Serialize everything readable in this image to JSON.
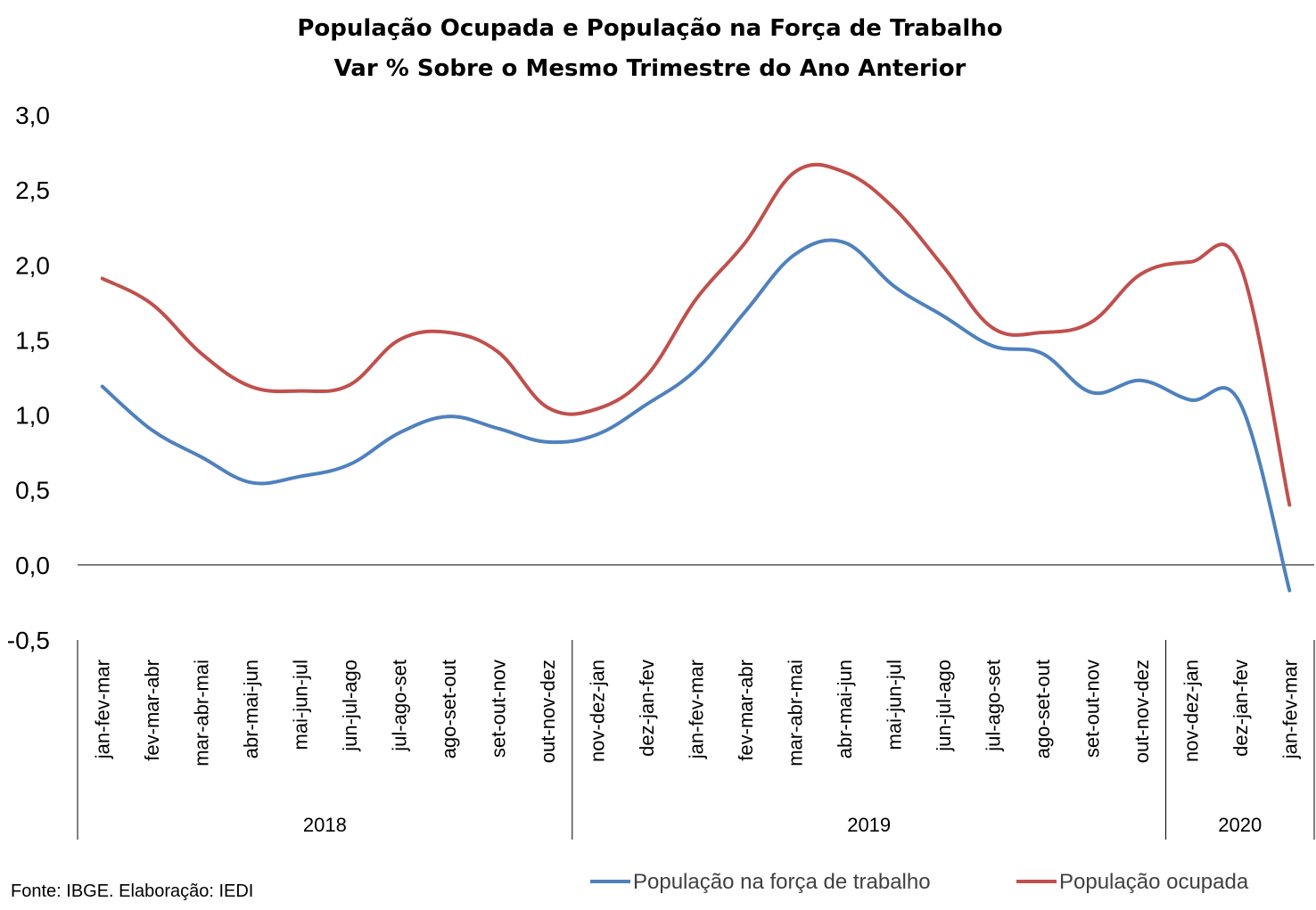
{
  "chart_data": {
    "type": "line",
    "title": "População Ocupada e População na Força de Trabalho",
    "subtitle": "Var % Sobre o Mesmo Trimestre do Ano Anterior",
    "xlabel": "",
    "ylabel": "",
    "ylim": [
      -0.5,
      3.0
    ],
    "yticks": [
      "3,0",
      "2,5",
      "2,0",
      "1,5",
      "1,0",
      "0,5",
      "0,0",
      "-0,5"
    ],
    "ytick_values": [
      3.0,
      2.5,
      2.0,
      1.5,
      1.0,
      0.5,
      0.0,
      -0.5
    ],
    "categories": [
      "jan-fev-mar",
      "fev-mar-abr",
      "mar-abr-mai",
      "abr-mai-jun",
      "mai-jun-jul",
      "jun-jul-ago",
      "jul-ago-set",
      "ago-set-out",
      "set-out-nov",
      "out-nov-dez",
      "nov-dez-jan",
      "dez-jan-fev",
      "jan-fev-mar",
      "fev-mar-abr",
      "mar-abr-mai",
      "abr-mai-jun",
      "mai-jun-jul",
      "jun-jul-ago",
      "jul-ago-set",
      "ago-set-out",
      "set-out-nov",
      "out-nov-dez",
      "nov-dez-jan",
      "dez-jan-fev",
      "jan-fev-mar"
    ],
    "year_groups": [
      {
        "label": "2018",
        "start": 0,
        "end": 9
      },
      {
        "label": "2019",
        "start": 10,
        "end": 21
      },
      {
        "label": "2020",
        "start": 22,
        "end": 24
      }
    ],
    "series": [
      {
        "name": "População na força de trabalho",
        "color": "#4F81BD",
        "values": [
          1.19,
          0.9,
          0.72,
          0.55,
          0.59,
          0.67,
          0.88,
          0.99,
          0.91,
          0.82,
          0.87,
          1.07,
          1.3,
          1.69,
          2.07,
          2.15,
          1.86,
          1.66,
          1.46,
          1.41,
          1.15,
          1.23,
          1.1,
          1.08,
          -0.17
        ]
      },
      {
        "name": "População ocupada",
        "color": "#C0504D",
        "values": [
          1.91,
          1.74,
          1.41,
          1.19,
          1.16,
          1.2,
          1.5,
          1.55,
          1.42,
          1.05,
          1.04,
          1.26,
          1.77,
          2.15,
          2.62,
          2.62,
          2.38,
          1.99,
          1.58,
          1.55,
          1.62,
          1.94,
          2.02,
          2.0,
          0.4
        ]
      }
    ],
    "grid": false,
    "legend_position": "bottom"
  },
  "source": "Fonte: IBGE. Elaboração: IEDI"
}
